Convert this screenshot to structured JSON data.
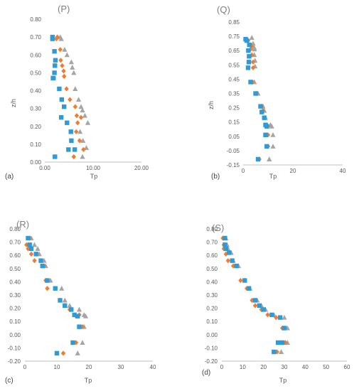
{
  "colors": {
    "series1": "#2E9BD6",
    "series2": "#ED7D31",
    "series3": "#A5A5A5",
    "axis": "#BFBFBF",
    "text": "#595959"
  },
  "chart_data": [
    {
      "type": "scatter",
      "title": "(P)",
      "panel_label": "(a)",
      "xlabel": "Tp",
      "ylabel": "z/h",
      "xlim": [
        0,
        20
      ],
      "ylim": [
        0,
        0.8
      ],
      "xticks": [
        "0.00",
        "10.00",
        "20.00"
      ],
      "yticks": [
        "0.00",
        "0.10",
        "0.20",
        "0.30",
        "0.40",
        "0.50",
        "0.60",
        "0.70",
        "0.80"
      ],
      "markers": [
        "square",
        "diamond",
        "triangle"
      ],
      "series": [
        {
          "x": [
            1.6,
            1.6,
            2.0,
            2.2,
            2.1,
            2.0,
            1.8,
            1.7,
            3.0,
            3.5,
            4.0,
            3.4,
            4.6,
            5.4,
            5.5,
            6.2,
            4.9,
            2.1
          ],
          "y": [
            0.7,
            0.69,
            0.62,
            0.57,
            0.54,
            0.5,
            0.47,
            0.47,
            0.41,
            0.35,
            0.31,
            0.25,
            0.22,
            0.17,
            0.12,
            0.07,
            0.07,
            0.03
          ]
        },
        {
          "x": [
            2.6,
            2.4,
            3.2,
            3.3,
            3.6,
            3.9,
            4.0,
            4.5,
            5.2,
            6.3,
            6.6,
            7.5,
            6.8,
            6.5,
            7.2,
            8.0,
            6.0
          ],
          "y": [
            0.7,
            0.69,
            0.63,
            0.57,
            0.54,
            0.51,
            0.48,
            0.41,
            0.35,
            0.31,
            0.26,
            0.25,
            0.22,
            0.17,
            0.12,
            0.07,
            0.03
          ]
        },
        {
          "x": [
            3.2,
            3.4,
            4.1,
            4.6,
            5.5,
            5.7,
            6.0,
            6.3,
            7.0,
            7.5,
            7.8,
            8.3,
            8.9,
            7.3,
            7.9,
            8.6,
            7.8
          ],
          "y": [
            0.7,
            0.69,
            0.63,
            0.6,
            0.56,
            0.53,
            0.5,
            0.41,
            0.35,
            0.31,
            0.29,
            0.26,
            0.22,
            0.17,
            0.12,
            0.08,
            0.03
          ]
        }
      ]
    },
    {
      "type": "scatter",
      "title": "(Q)",
      "panel_label": "(b)",
      "xlabel": "Tp",
      "ylabel": "z/h",
      "xlim": [
        0,
        40
      ],
      "ylim": [
        -0.15,
        0.85
      ],
      "xticks": [
        "0",
        "20",
        "40"
      ],
      "yticks": [
        "-0.15",
        "-0.05",
        "0.05",
        "0.15",
        "0.25",
        "0.35",
        "0.45",
        "0.55",
        "0.65",
        "0.75",
        "0.85"
      ],
      "markers": [
        "square",
        "diamond",
        "triangle"
      ],
      "series": [
        {
          "x": [
            1.0,
            1.5,
            2.5,
            2.1,
            2.4,
            2.3,
            2.0,
            3.0,
            5.0,
            7.0,
            7.5,
            8.5,
            9.0,
            9.5,
            9.0,
            9.5,
            6.0
          ],
          "y": [
            0.73,
            0.72,
            0.69,
            0.65,
            0.61,
            0.57,
            0.53,
            0.43,
            0.35,
            0.26,
            0.22,
            0.18,
            0.13,
            0.12,
            0.06,
            -0.02,
            -0.11
          ]
        },
        {
          "x": [
            1.5,
            2.0,
            3.5,
            3.0,
            3.5,
            4.0,
            4.0,
            3.8,
            5.5,
            7.5,
            8.0,
            8.5,
            9.5,
            10.0,
            10.0,
            10.0,
            6.5
          ],
          "y": [
            0.73,
            0.72,
            0.68,
            0.66,
            0.62,
            0.57,
            0.53,
            0.43,
            0.35,
            0.26,
            0.23,
            0.18,
            0.13,
            0.12,
            0.06,
            -0.02,
            -0.11
          ]
        },
        {
          "x": [
            3.5,
            4.0,
            4.5,
            4.5,
            4.5,
            4.8,
            4.8,
            4.5,
            6.0,
            8.0,
            8.5,
            9.0,
            11.0,
            11.5,
            12.0,
            12.0,
            10.5
          ],
          "y": [
            0.74,
            0.7,
            0.67,
            0.66,
            0.62,
            0.58,
            0.54,
            0.43,
            0.35,
            0.26,
            0.23,
            0.18,
            0.13,
            0.12,
            0.06,
            -0.02,
            -0.11
          ]
        }
      ]
    },
    {
      "type": "scatter",
      "title": "(R)",
      "panel_label": "(c)",
      "xlabel": "Tp",
      "ylabel": "",
      "xlim": [
        0,
        40
      ],
      "ylim": [
        -0.2,
        0.8
      ],
      "xticks": [
        "0",
        "10",
        "20",
        "30",
        "40"
      ],
      "yticks": [
        "-0.20",
        "-0.10",
        "0.00",
        "0.10",
        "0.20",
        "0.30",
        "0.40",
        "0.50",
        "0.60",
        "0.70",
        "0.80"
      ],
      "markers": [
        "square",
        "diamond",
        "triangle"
      ],
      "series": [
        {
          "x": [
            1.0,
            1.5,
            2.0,
            3.5,
            5.0,
            5.5,
            7.0,
            9.5,
            11.0,
            12.5,
            14.5,
            15.5,
            16.5,
            17.0,
            15.0,
            10.0
          ],
          "y": [
            0.73,
            0.68,
            0.65,
            0.61,
            0.56,
            0.52,
            0.41,
            0.35,
            0.26,
            0.22,
            0.19,
            0.15,
            0.14,
            0.06,
            -0.06,
            -0.14
          ]
        },
        {
          "x": [
            1.5,
            0.5,
            1.0,
            2.0,
            3.0,
            6.0,
            6.5,
            7.0,
            11.0,
            12.5,
            14.0,
            17.0,
            16.0,
            18.0,
            16.0,
            12.0
          ],
          "y": [
            0.73,
            0.68,
            0.65,
            0.61,
            0.56,
            0.52,
            0.41,
            0.35,
            0.26,
            0.22,
            0.19,
            0.15,
            0.14,
            0.06,
            -0.06,
            -0.14
          ]
        },
        {
          "x": [
            2.0,
            3.0,
            4.0,
            4.5,
            6.0,
            6.5,
            8.0,
            11.5,
            12.5,
            14.0,
            17.0,
            18.5,
            19.0,
            18.5,
            18.0,
            16.5
          ],
          "y": [
            0.73,
            0.68,
            0.65,
            0.61,
            0.56,
            0.52,
            0.41,
            0.35,
            0.26,
            0.22,
            0.19,
            0.15,
            0.14,
            0.06,
            -0.06,
            -0.14
          ]
        }
      ]
    },
    {
      "type": "scatter",
      "title": "(S)",
      "panel_label": "(d)",
      "xlabel": "Tp",
      "ylabel": "",
      "xlim": [
        0,
        60
      ],
      "ylim": [
        -0.2,
        0.8
      ],
      "xticks": [
        "0",
        "10",
        "20",
        "30",
        "40",
        "50",
        "60"
      ],
      "yticks": [
        "-0.20",
        "-0.10",
        "0.00",
        "0.10",
        "0.20",
        "0.30",
        "0.40",
        "0.50",
        "0.60",
        "0.70",
        "0.80"
      ],
      "markers": [
        "square",
        "diamond",
        "triangle"
      ],
      "series": [
        {
          "x": [
            1.5,
            1.5,
            2.0,
            3.5,
            5.0,
            7.0,
            11.0,
            13.0,
            16.0,
            18.0,
            20.0,
            24.0,
            28.0,
            30.0,
            29.0,
            27.0,
            25.0
          ],
          "y": [
            0.73,
            0.68,
            0.65,
            0.62,
            0.56,
            0.52,
            0.41,
            0.35,
            0.26,
            0.22,
            0.19,
            0.15,
            0.13,
            0.05,
            -0.06,
            -0.06,
            -0.13
          ]
        },
        {
          "x": [
            0.5,
            1.0,
            1.0,
            2.0,
            3.0,
            5.5,
            9.0,
            12.0,
            14.5,
            16.0,
            19.0,
            22.0,
            26.0,
            29.0,
            30.5,
            29.0,
            26.5
          ],
          "y": [
            0.73,
            0.68,
            0.65,
            0.61,
            0.56,
            0.52,
            0.41,
            0.35,
            0.26,
            0.22,
            0.19,
            0.15,
            0.13,
            0.05,
            -0.06,
            -0.06,
            -0.13
          ]
        },
        {
          "x": [
            2.0,
            2.5,
            3.0,
            4.5,
            5.5,
            8.0,
            11.0,
            13.5,
            17.0,
            19.0,
            21.0,
            25.0,
            30.0,
            31.5,
            31.5,
            30.5,
            28.5
          ],
          "y": [
            0.73,
            0.68,
            0.65,
            0.62,
            0.56,
            0.52,
            0.41,
            0.35,
            0.26,
            0.22,
            0.19,
            0.15,
            0.13,
            0.05,
            -0.06,
            -0.06,
            -0.13
          ]
        }
      ]
    }
  ]
}
